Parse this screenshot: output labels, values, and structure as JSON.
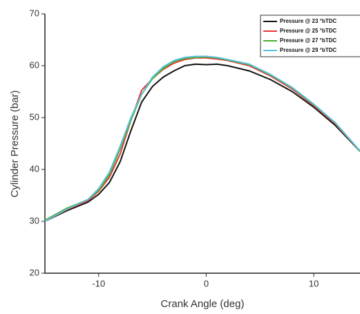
{
  "chart_data": {
    "type": "line",
    "x_label": "Crank Angle (deg)",
    "y_label": "Cylinder Pressure (bar)",
    "x": [
      -15,
      -13,
      -11,
      -10,
      -9,
      -8,
      -7,
      -6,
      -5,
      -4,
      -3,
      -2,
      -1,
      0,
      1,
      2,
      4,
      6,
      8,
      10,
      12,
      14.3
    ],
    "series": [
      {
        "name": "Pressure @ 23 °bTDC",
        "color": "#111111",
        "values": [
          30,
          32,
          33.7,
          35.2,
          37.5,
          41.5,
          47.5,
          53,
          56,
          57.8,
          59,
          60,
          60.3,
          60.2,
          60.3,
          60,
          59,
          57.3,
          55,
          52,
          48.5,
          43.5
        ]
      },
      {
        "name": "Pressure @ 25 °bTDC",
        "color": "#e53935",
        "values": [
          30,
          32.2,
          34,
          35.8,
          38.5,
          43,
          49.5,
          55.3,
          57.5,
          59.3,
          60.5,
          61.2,
          61.5,
          61.5,
          61.3,
          61,
          60,
          58,
          55.5,
          52.3,
          48.8,
          43.5
        ]
      },
      {
        "name": "Pressure @ 27 °bTDC",
        "color": "#4caf32",
        "values": [
          30.2,
          32.5,
          34.2,
          36,
          39,
          44,
          49.5,
          54.5,
          57.5,
          59.5,
          60.8,
          61.4,
          61.6,
          61.7,
          61.5,
          61.1,
          60.2,
          58.2,
          55.7,
          52.5,
          49,
          43.5
        ]
      },
      {
        "name": "Pressure @ 29 °bTDC",
        "color": "#5bc0de",
        "values": [
          30,
          32.3,
          34.2,
          36.3,
          39.5,
          44.5,
          50,
          54.5,
          57.8,
          59.8,
          61,
          61.6,
          61.8,
          61.8,
          61.6,
          61.2,
          60.3,
          58.3,
          55.8,
          52.6,
          49,
          43.6
        ]
      }
    ],
    "xlim": [
      -15,
      14.3
    ],
    "xticks": [
      -10,
      0,
      10
    ],
    "ylim": [
      20,
      70
    ],
    "yticks": [
      20,
      30,
      40,
      50,
      60,
      70
    ],
    "grid": false,
    "legend": "top-right"
  }
}
